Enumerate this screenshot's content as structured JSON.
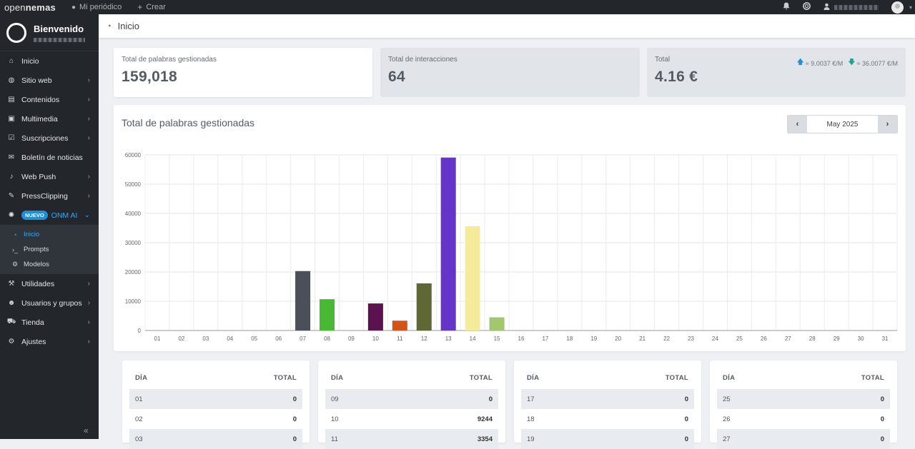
{
  "topbar": {
    "logo_light": "open",
    "logo_bold": "nemas",
    "links": [
      {
        "icon": "globe-icon",
        "label": "Mi periódico"
      },
      {
        "icon": "plus-icon",
        "label": "Crear"
      }
    ],
    "right_icons": [
      "bell-icon",
      "help-icon",
      "user-icon"
    ]
  },
  "sidebar": {
    "welcome": "Bienvenido",
    "items": [
      {
        "icon": "home-icon",
        "label": "Inicio",
        "chevron": false
      },
      {
        "icon": "globe-icon",
        "label": "Sitio web",
        "chevron": true
      },
      {
        "icon": "newspaper-icon",
        "label": "Contenidos",
        "chevron": true
      },
      {
        "icon": "image-icon",
        "label": "Multimedia",
        "chevron": true
      },
      {
        "icon": "check-square-icon",
        "label": "Suscripciones",
        "chevron": true
      },
      {
        "icon": "envelope-icon",
        "label": "Boletín de noticias",
        "chevron": false
      },
      {
        "icon": "bell-icon",
        "label": "Web Push",
        "chevron": true
      },
      {
        "icon": "paperclip-icon",
        "label": "PressClipping",
        "chevron": true
      }
    ],
    "ai_item": {
      "badge": "NUEVO",
      "label": "ONM AI"
    },
    "ai_sub": [
      {
        "icon": "dashboard-icon",
        "label": "Inicio",
        "active": true
      },
      {
        "icon": "terminal-icon",
        "label": "Prompts",
        "active": false
      },
      {
        "icon": "cogs-icon",
        "label": "Modelos",
        "active": false
      }
    ],
    "items_after": [
      {
        "icon": "wrench-icon",
        "label": "Utilidades",
        "chevron": true
      },
      {
        "icon": "users-icon",
        "label": "Usuarios y grupos",
        "chevron": true
      },
      {
        "icon": "cart-icon",
        "label": "Tienda",
        "chevron": true
      },
      {
        "icon": "cogs-icon",
        "label": "Ajustes",
        "chevron": true
      }
    ]
  },
  "header": {
    "title": "Inicio"
  },
  "stats": {
    "words": {
      "label": "Total de palabras gestionadas",
      "value": "159,018"
    },
    "interactions": {
      "label": "Total de interacciones",
      "value": "64"
    },
    "total": {
      "label": "Total",
      "value": "4.16 €",
      "rate_up": "≈ 9.0037 €/M",
      "rate_down": "≈ 36.0077 €/M"
    }
  },
  "panel": {
    "title": "Total de palabras gestionadas",
    "month": "May 2025"
  },
  "chart_data": {
    "type": "bar",
    "categories": [
      "01",
      "02",
      "03",
      "04",
      "05",
      "06",
      "07",
      "08",
      "09",
      "10",
      "11",
      "12",
      "13",
      "14",
      "15",
      "16",
      "17",
      "18",
      "19",
      "20",
      "21",
      "22",
      "23",
      "24",
      "25",
      "26",
      "27",
      "28",
      "29",
      "30",
      "31"
    ],
    "values": [
      0,
      0,
      0,
      0,
      0,
      0,
      20300,
      10700,
      0,
      9244,
      3354,
      16100,
      59100,
      35600,
      4500,
      0,
      0,
      0,
      0,
      0,
      0,
      0,
      0,
      0,
      0,
      0,
      0,
      0,
      0,
      0,
      0
    ],
    "colors": {
      "07": "#4a4f5a",
      "08": "#49b935",
      "10": "#5c1150",
      "11": "#d35418",
      "12": "#5f6734",
      "13": "#6534c9",
      "14": "#f6eb9a",
      "15": "#a1c76f"
    },
    "ylim": [
      0,
      60000
    ],
    "yticks": [
      0,
      10000,
      20000,
      30000,
      40000,
      50000,
      60000
    ],
    "grid": true
  },
  "tables": [
    {
      "head_day": "DÍA",
      "head_total": "TOTAL",
      "rows": [
        [
          "01",
          "0"
        ],
        [
          "02",
          "0"
        ],
        [
          "03",
          "0"
        ]
      ]
    },
    {
      "head_day": "DÍA",
      "head_total": "TOTAL",
      "rows": [
        [
          "09",
          "0"
        ],
        [
          "10",
          "9244"
        ],
        [
          "11",
          "3354"
        ]
      ]
    },
    {
      "head_day": "DÍA",
      "head_total": "TOTAL",
      "rows": [
        [
          "17",
          "0"
        ],
        [
          "18",
          "0"
        ],
        [
          "19",
          "0"
        ]
      ]
    },
    {
      "head_day": "DÍA",
      "head_total": "TOTAL",
      "rows": [
        [
          "25",
          "0"
        ],
        [
          "26",
          "0"
        ],
        [
          "27",
          "0"
        ]
      ]
    }
  ]
}
